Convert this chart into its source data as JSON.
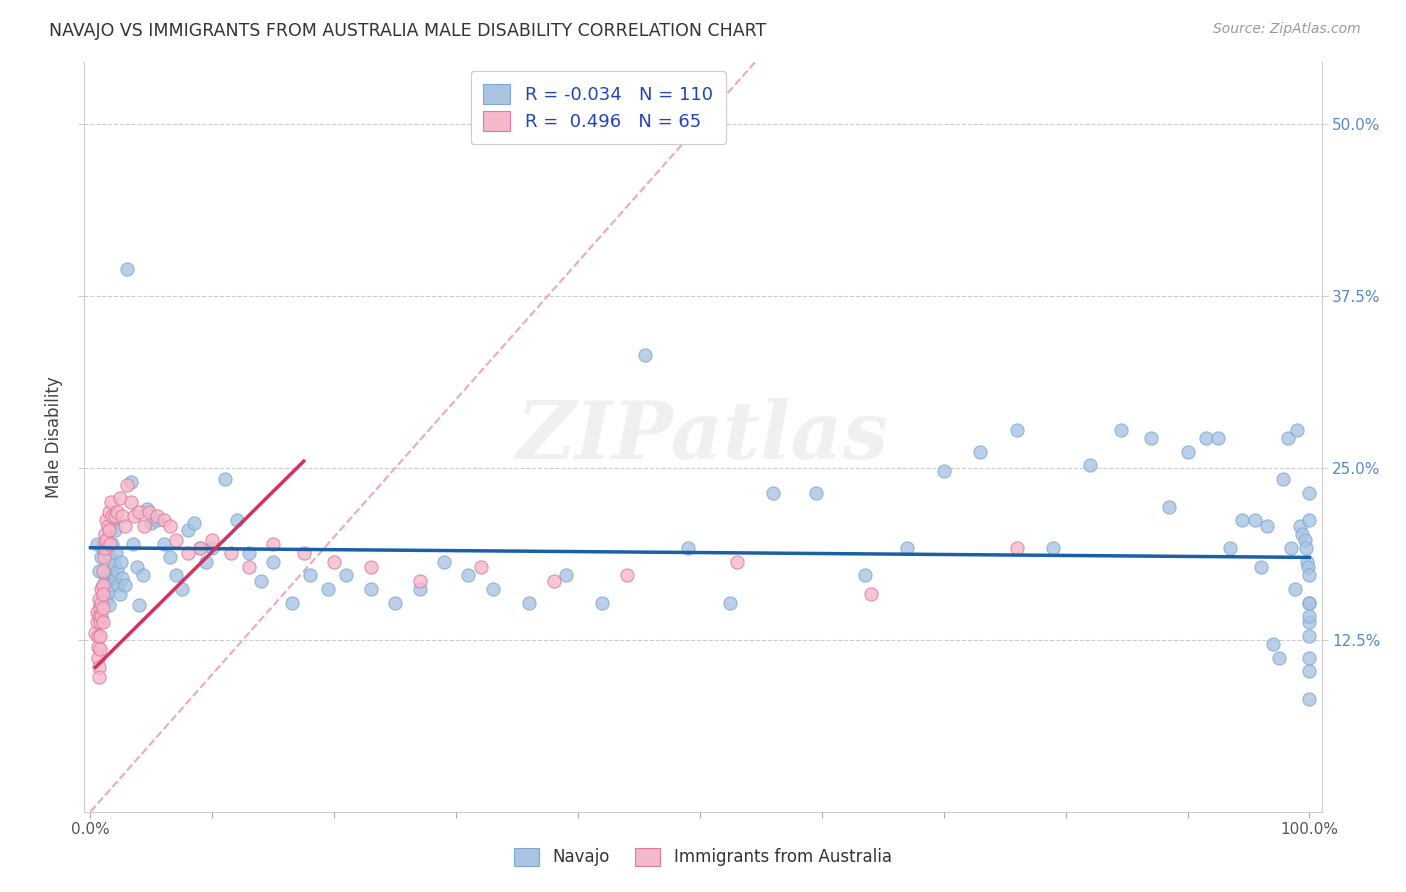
{
  "title": "NAVAJO VS IMMIGRANTS FROM AUSTRALIA MALE DISABILITY CORRELATION CHART",
  "source": "Source: ZipAtlas.com",
  "ylabel": "Male Disability",
  "ytick_labels": [
    "12.5%",
    "25.0%",
    "37.5%",
    "50.0%"
  ],
  "ytick_values": [
    0.125,
    0.25,
    0.375,
    0.5
  ],
  "xlim": [
    -0.005,
    1.01
  ],
  "ylim": [
    0.0,
    0.545
  ],
  "navajo_color": "#aac4e2",
  "navajo_edge_color": "#7aaad4",
  "australia_color": "#f5b8cb",
  "australia_edge_color": "#e07898",
  "trendline_navajo_color": "#1a5fa8",
  "trendline_australia_color": "#d43060",
  "diagonal_color": "#e8a0b0",
  "legend_r_navajo": "-0.034",
  "legend_n_navajo": "110",
  "legend_r_australia": "0.496",
  "legend_n_australia": "65",
  "legend_label_navajo": "Navajo",
  "legend_label_australia": "Immigrants from Australia",
  "watermark": "ZIPatlas",
  "navajo_x": [
    0.005,
    0.007,
    0.008,
    0.009,
    0.01,
    0.01,
    0.011,
    0.012,
    0.013,
    0.013,
    0.014,
    0.015,
    0.015,
    0.016,
    0.017,
    0.018,
    0.018,
    0.019,
    0.02,
    0.02,
    0.021,
    0.022,
    0.023,
    0.024,
    0.025,
    0.026,
    0.028,
    0.03,
    0.033,
    0.035,
    0.038,
    0.04,
    0.043,
    0.046,
    0.05,
    0.055,
    0.06,
    0.065,
    0.07,
    0.075,
    0.08,
    0.085,
    0.09,
    0.095,
    0.1,
    0.11,
    0.12,
    0.13,
    0.14,
    0.15,
    0.165,
    0.18,
    0.195,
    0.21,
    0.23,
    0.25,
    0.27,
    0.29,
    0.31,
    0.33,
    0.36,
    0.39,
    0.42,
    0.455,
    0.49,
    0.525,
    0.56,
    0.595,
    0.635,
    0.67,
    0.7,
    0.73,
    0.76,
    0.79,
    0.82,
    0.845,
    0.87,
    0.885,
    0.9,
    0.915,
    0.925,
    0.935,
    0.945,
    0.955,
    0.96,
    0.965,
    0.97,
    0.975,
    0.978,
    0.982,
    0.985,
    0.988,
    0.99,
    0.992,
    0.994,
    0.996,
    0.997,
    0.998,
    0.999,
    1.0,
    1.0,
    1.0,
    1.0,
    1.0,
    1.0,
    1.0,
    1.0,
    1.0,
    1.0,
    1.0
  ],
  "navajo_y": [
    0.195,
    0.175,
    0.15,
    0.185,
    0.165,
    0.155,
    0.19,
    0.172,
    0.165,
    0.155,
    0.16,
    0.15,
    0.185,
    0.175,
    0.165,
    0.21,
    0.195,
    0.18,
    0.17,
    0.205,
    0.188,
    0.175,
    0.165,
    0.158,
    0.182,
    0.17,
    0.165,
    0.395,
    0.24,
    0.195,
    0.178,
    0.15,
    0.172,
    0.22,
    0.21,
    0.212,
    0.195,
    0.185,
    0.172,
    0.162,
    0.205,
    0.21,
    0.192,
    0.182,
    0.192,
    0.242,
    0.212,
    0.188,
    0.168,
    0.182,
    0.152,
    0.172,
    0.162,
    0.172,
    0.162,
    0.152,
    0.162,
    0.182,
    0.172,
    0.162,
    0.152,
    0.172,
    0.152,
    0.332,
    0.192,
    0.152,
    0.232,
    0.232,
    0.172,
    0.192,
    0.248,
    0.262,
    0.278,
    0.192,
    0.252,
    0.278,
    0.272,
    0.222,
    0.262,
    0.272,
    0.272,
    0.192,
    0.212,
    0.212,
    0.178,
    0.208,
    0.122,
    0.112,
    0.242,
    0.272,
    0.192,
    0.162,
    0.278,
    0.208,
    0.202,
    0.198,
    0.192,
    0.182,
    0.178,
    0.172,
    0.152,
    0.138,
    0.102,
    0.082,
    0.212,
    0.232,
    0.112,
    0.152,
    0.142,
    0.128
  ],
  "australia_x": [
    0.004,
    0.005,
    0.005,
    0.006,
    0.006,
    0.006,
    0.007,
    0.007,
    0.007,
    0.007,
    0.008,
    0.008,
    0.008,
    0.008,
    0.009,
    0.009,
    0.009,
    0.01,
    0.01,
    0.01,
    0.01,
    0.01,
    0.011,
    0.011,
    0.012,
    0.012,
    0.013,
    0.013,
    0.014,
    0.015,
    0.015,
    0.016,
    0.017,
    0.018,
    0.02,
    0.022,
    0.024,
    0.026,
    0.028,
    0.03,
    0.033,
    0.036,
    0.04,
    0.044,
    0.048,
    0.055,
    0.06,
    0.065,
    0.07,
    0.08,
    0.09,
    0.1,
    0.115,
    0.13,
    0.15,
    0.175,
    0.2,
    0.23,
    0.27,
    0.32,
    0.38,
    0.44,
    0.53,
    0.64,
    0.76
  ],
  "australia_y": [
    0.13,
    0.145,
    0.138,
    0.128,
    0.12,
    0.112,
    0.105,
    0.098,
    0.142,
    0.155,
    0.148,
    0.138,
    0.128,
    0.118,
    0.162,
    0.152,
    0.142,
    0.175,
    0.165,
    0.158,
    0.148,
    0.138,
    0.195,
    0.185,
    0.202,
    0.192,
    0.212,
    0.198,
    0.208,
    0.218,
    0.205,
    0.195,
    0.225,
    0.215,
    0.215,
    0.218,
    0.228,
    0.215,
    0.208,
    0.238,
    0.225,
    0.215,
    0.218,
    0.208,
    0.218,
    0.215,
    0.212,
    0.208,
    0.198,
    0.188,
    0.192,
    0.198,
    0.188,
    0.178,
    0.195,
    0.188,
    0.182,
    0.178,
    0.168,
    0.178,
    0.168,
    0.172,
    0.182,
    0.158,
    0.192
  ],
  "nav_trend_x": [
    0.0,
    1.0
  ],
  "nav_trend_y": [
    0.192,
    0.185
  ],
  "aus_trend_x": [
    0.004,
    0.175
  ],
  "aus_trend_y": [
    0.105,
    0.255
  ]
}
